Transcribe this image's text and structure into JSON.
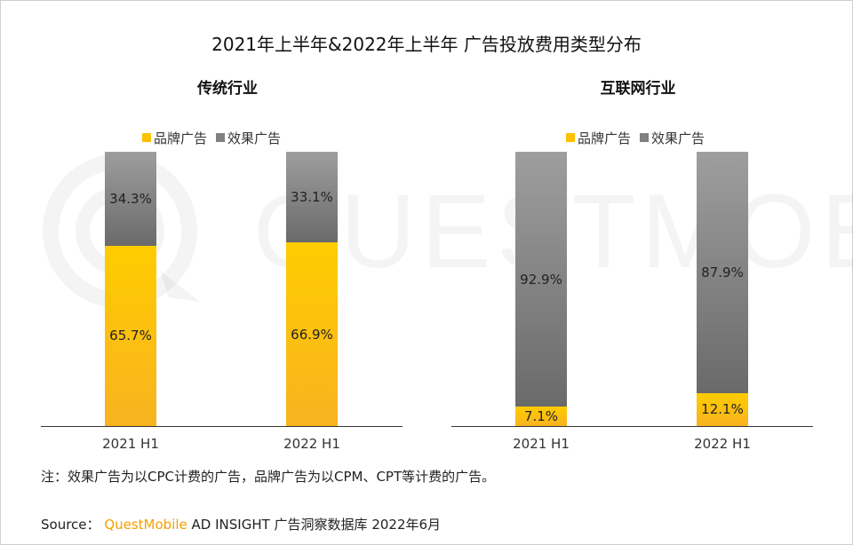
{
  "title": "2021年上半年&2022年上半年 广告投放费用类型分布",
  "colors": {
    "brand": "#ffc000",
    "effect": "#808080",
    "axis": "#333333"
  },
  "legend": {
    "brand": "品牌广告",
    "effect": "效果广告"
  },
  "watermark": "QUESTMOBILE",
  "note": "注：效果广告为以CPC计费的广告，品牌广告为以CPM、CPT等计费的广告。",
  "source": {
    "prefix": "Source：",
    "brand": "QuestMobile",
    "rest": "AD INSIGHT 广告洞察数据库 2022年6月"
  },
  "chart_data": [
    {
      "type": "bar",
      "stacked": true,
      "title": "传统行业",
      "categories": [
        "2021 H1",
        "2022 H1"
      ],
      "series": [
        {
          "name": "品牌广告",
          "values": [
            65.7,
            66.9
          ],
          "labels": [
            "65.7%",
            "66.9%"
          ]
        },
        {
          "name": "效果广告",
          "values": [
            34.3,
            33.1
          ],
          "labels": [
            "34.3%",
            "33.1%"
          ]
        }
      ],
      "ylim": [
        0,
        100
      ],
      "legend_position": "top-center",
      "grid": false
    },
    {
      "type": "bar",
      "stacked": true,
      "title": "互联网行业",
      "categories": [
        "2021 H1",
        "2022 H1"
      ],
      "series": [
        {
          "name": "品牌广告",
          "values": [
            7.1,
            12.1
          ],
          "labels": [
            "7.1%",
            "12.1%"
          ]
        },
        {
          "name": "效果广告",
          "values": [
            92.9,
            87.9
          ],
          "labels": [
            "92.9%",
            "87.9%"
          ]
        }
      ],
      "ylim": [
        0,
        100
      ],
      "legend_position": "top-center",
      "grid": false
    }
  ]
}
